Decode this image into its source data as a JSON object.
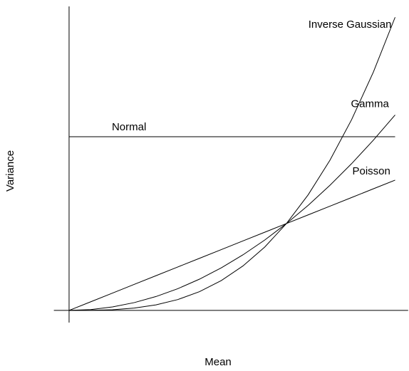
{
  "chart_data": {
    "type": "line",
    "xlabel": "Mean",
    "ylabel": "Variance",
    "x": [
      0,
      0.1,
      0.2,
      0.3,
      0.4,
      0.5,
      0.6,
      0.7,
      0.8,
      0.9,
      1,
      1.1,
      1.2,
      1.3,
      1.4,
      1.5
    ],
    "series": [
      {
        "name": "Normal",
        "color": "#000000",
        "values": [
          2,
          2,
          2,
          2,
          2,
          2,
          2,
          2,
          2,
          2,
          2,
          2,
          2,
          2,
          2,
          2
        ]
      },
      {
        "name": "Poisson",
        "color": "#000000",
        "values": [
          0,
          0.1,
          0.2,
          0.3,
          0.4,
          0.5,
          0.6,
          0.7,
          0.8,
          0.9,
          1,
          1.1,
          1.2,
          1.3,
          1.4,
          1.5
        ]
      },
      {
        "name": "Gamma",
        "color": "#000000",
        "values": [
          0,
          0.01,
          0.04,
          0.09,
          0.16,
          0.25,
          0.36,
          0.49,
          0.64,
          0.81,
          1,
          1.21,
          1.44,
          1.69,
          1.96,
          2.25
        ]
      },
      {
        "name": "Inverse Gaussian",
        "color": "#000000",
        "values": [
          0,
          0.001,
          0.008,
          0.027,
          0.064,
          0.125,
          0.216,
          0.343,
          0.512,
          0.729,
          1,
          1.331,
          1.728,
          2.197,
          2.744,
          3.375
        ]
      }
    ],
    "xlim": [
      -0.07,
      1.56
    ],
    "ylim": [
      -0.14,
      3.5
    ],
    "grid": false
  }
}
